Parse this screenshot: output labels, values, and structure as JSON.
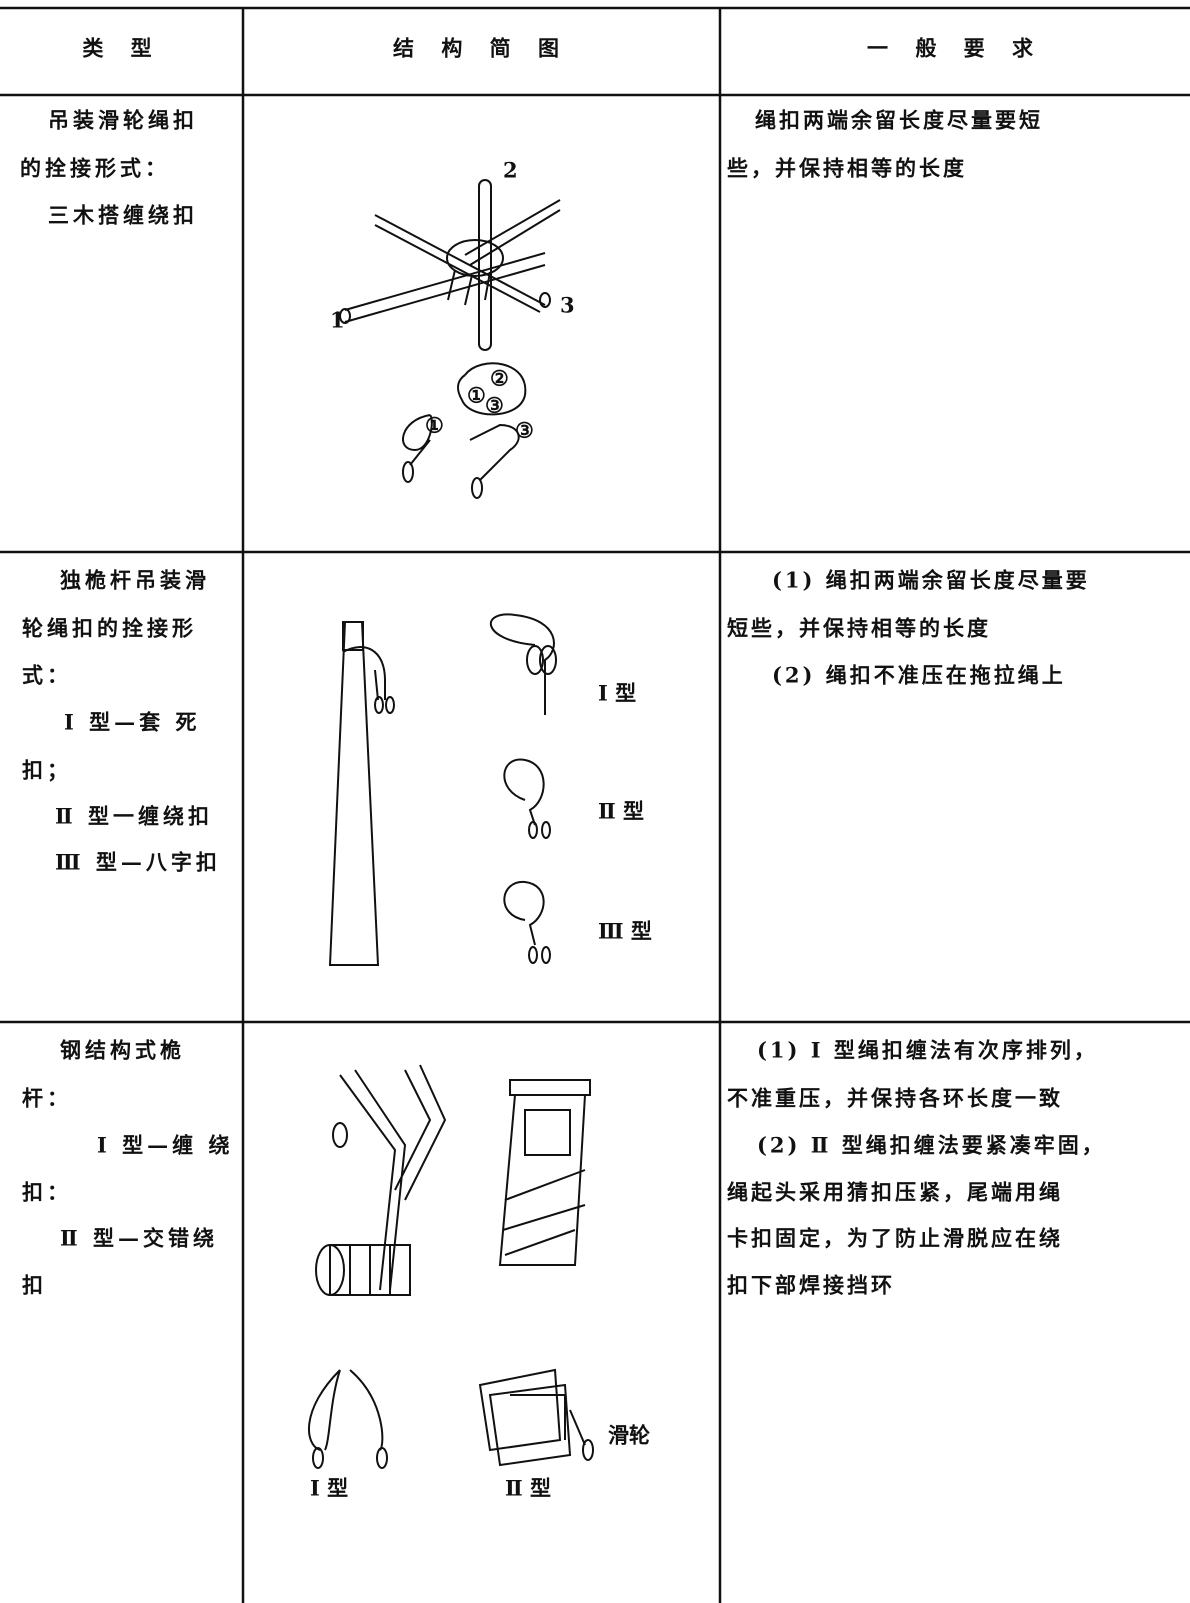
{
  "header": [
    "类 型",
    "结 构 简 图",
    "一 般 要 求"
  ],
  "rows": [
    {
      "type": [
        "吊装滑轮绳扣",
        "的拴接形式：",
        "三木搭缠绕扣"
      ],
      "figure_labels": [
        "2",
        "1",
        "3",
        "②",
        "①",
        "③",
        "①",
        "③"
      ],
      "requirements": [
        "绳扣两端余留长度尽量要短",
        "些，并保持相等的长度"
      ]
    },
    {
      "type": [
        "独桅杆吊装滑",
        "轮绳扣的拴接形",
        "式：",
        "Ⅰ 型—套 死",
        "扣；",
        "Ⅱ 型一缠绕扣",
        "Ⅲ 型—八字扣"
      ],
      "figure_labels": [
        "Ⅰ 型",
        "Ⅱ 型",
        "Ⅲ 型"
      ],
      "requirements": [
        "(1) 绳扣两端余留长度尽量要",
        "短些，并保持相等的长度",
        "(2) 绳扣不准压在拖拉绳上"
      ]
    },
    {
      "type": [
        "钢结构式桅",
        "杆：",
        "Ⅰ 型—缠 绕",
        "扣：",
        "Ⅱ 型—交错绕",
        "扣"
      ],
      "figure_labels": [
        "滑轮",
        "Ⅰ 型",
        "Ⅱ 型"
      ],
      "requirements": [
        "(1) Ⅰ 型绳扣缠法有次序排列，",
        "不准重压，并保持各环长度一致",
        "(2) Ⅱ 型绳扣缠法要紧凑牢固，",
        "绳起头采用猜扣压紧，尾端用绳",
        "卡扣固定，为了防止滑脱应在绕",
        "扣下部焊接挡环"
      ]
    }
  ]
}
